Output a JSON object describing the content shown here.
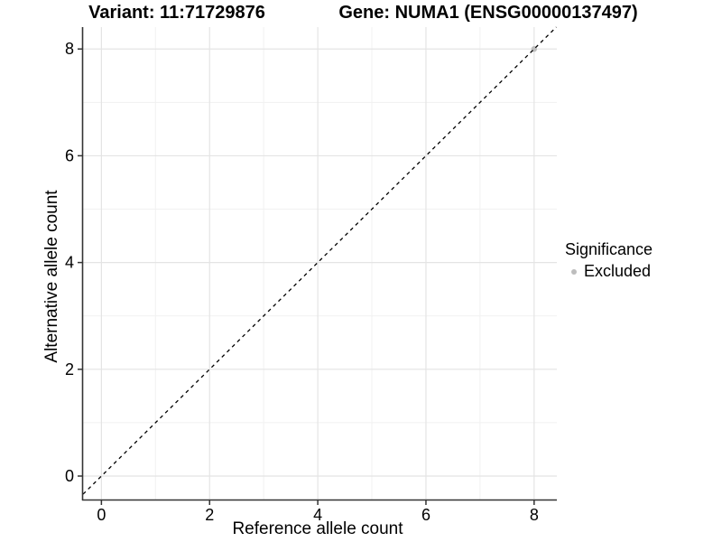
{
  "titles": {
    "variant": "Variant: 11:71729876",
    "gene": "Gene: NUMA1 (ENSG00000137497)"
  },
  "chart_data": {
    "type": "scatter",
    "titles": {
      "variant": "Variant: 11:71729876",
      "gene": "Gene: NUMA1 (ENSG00000137497)"
    },
    "xlabel": "Reference allele count",
    "ylabel": "Alternative allele count",
    "xlim": [
      -0.34,
      8.42
    ],
    "ylim": [
      -0.44,
      8.41
    ],
    "x_ticks": [
      0,
      2,
      4,
      6,
      8
    ],
    "y_ticks": [
      0,
      2,
      4,
      6,
      8
    ],
    "x_minor_ticks": [
      1,
      3,
      5,
      7
    ],
    "y_minor_ticks": [
      1,
      3,
      5,
      7
    ],
    "grid": "major+minor",
    "legend_title": "Significance",
    "legend_position": "right",
    "series": [
      {
        "name": "Excluded",
        "color": "#bdbdbd",
        "points": [
          {
            "x": 8,
            "y": 8
          }
        ]
      }
    ],
    "reference_line": {
      "kind": "identity",
      "equation": "y = x",
      "style": "dashed",
      "color": "#000000"
    }
  },
  "style": {
    "background": "#ffffff",
    "grid_major_color": "#e4e4e4",
    "grid_minor_color": "#f1f1f1",
    "axis_line_color": "#333333",
    "tick_color": "#333333",
    "text_color": "#000000",
    "point_color": "#bdbdbd"
  }
}
